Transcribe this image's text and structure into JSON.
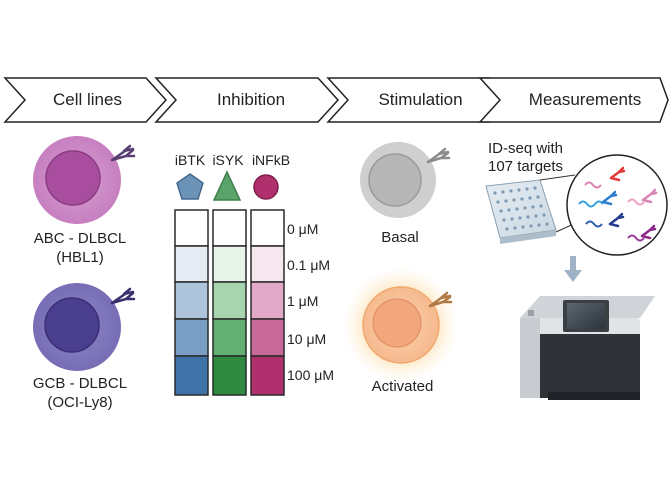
{
  "steps": [
    "Cell lines",
    "Inhibition",
    "Stimulation",
    "Measurements"
  ],
  "cell_lines": [
    {
      "type": "ABC - DLBCL",
      "name": "(HBL1)"
    },
    {
      "type": "GCB - DLBCL",
      "name": "(OCI-Ly8)"
    }
  ],
  "inhibitors": [
    {
      "name": "iBTK",
      "shape": "pentagon",
      "color": "#6b93b8"
    },
    {
      "name": "iSYK",
      "shape": "triangle",
      "color": "#5aa46b"
    },
    {
      "name": "iNFkB",
      "shape": "circle",
      "color": "#b0306e"
    }
  ],
  "concentrations": [
    "0 μM",
    "0.1 μM",
    "1 μM",
    "10 μM",
    "100 μM"
  ],
  "stimulation": {
    "basal": "Basal",
    "activated": "Activated"
  },
  "measurements": {
    "line1": "ID-seq with",
    "line2": "107 targets"
  }
}
